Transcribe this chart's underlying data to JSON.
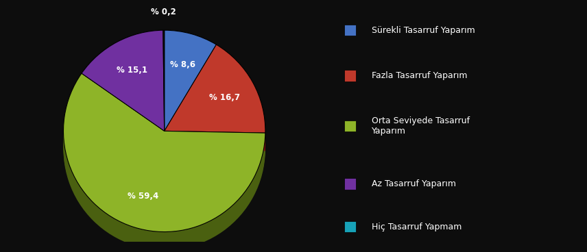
{
  "labels": [
    "Sürekli Tasarruf Yaparım",
    "Fazla Tasarruf Yaparım",
    "Orta Seviyede Tasarruf\nYaparım",
    "Az Tasarruf Yaparım",
    "Hiç Tasarruf Yapmam"
  ],
  "values": [
    8.6,
    16.7,
    59.4,
    15.1,
    0.2
  ],
  "colors": [
    "#4472c4",
    "#c0392b",
    "#8eb428",
    "#7030a0",
    "#1c1c1c"
  ],
  "shadow_colors": [
    "#1a3a6a",
    "#7a1010",
    "#4a6010",
    "#3a1060",
    "#080808"
  ],
  "pct_labels": [
    "% 8,6",
    "% 16,7",
    "% 59,4",
    "% 15,1",
    "% 0,2"
  ],
  "legend_labels": [
    "Sürekli Tasarruf Yaparım",
    "Fazla Tasarruf Yaparım",
    "Orta Seviyede Tasarruf\nYaparım",
    "Az Tasarruf Yaparım",
    "Hiç Tasarruf Yapmam"
  ],
  "legend_colors": [
    "#4472c4",
    "#c0392b",
    "#8eb428",
    "#7030a0",
    "#17a2b8"
  ],
  "background_color": "#0d0d0d",
  "text_color": "#ffffff",
  "start_angle": 90,
  "fig_width": 8.56,
  "fig_height": 3.68
}
